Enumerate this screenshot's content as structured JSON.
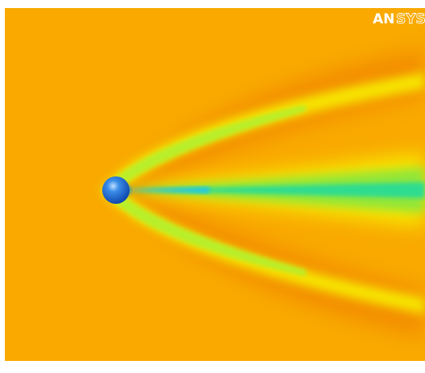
{
  "logo": {
    "bold": "AN",
    "outline": "SYS"
  }
}
